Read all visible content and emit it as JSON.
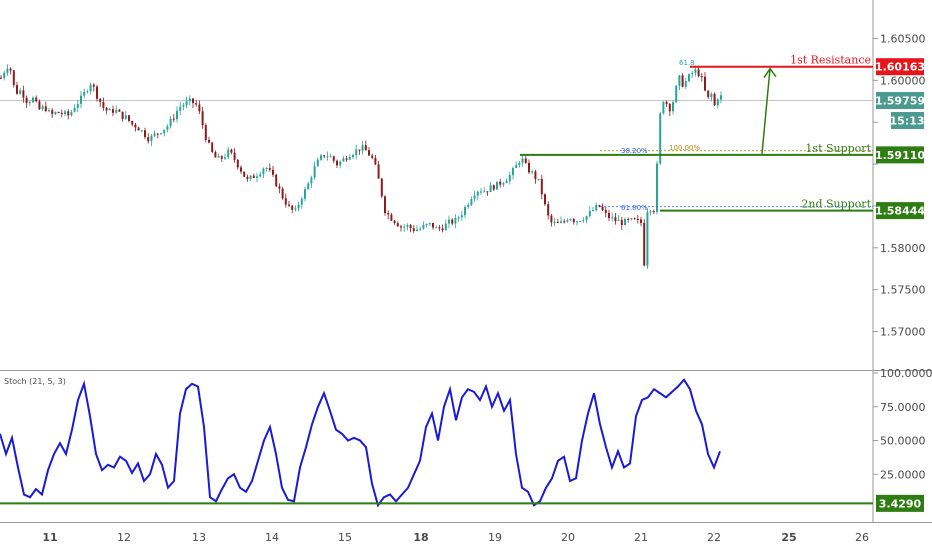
{
  "chart_data": [
    {
      "type": "candlestick",
      "title": "",
      "price_axis": {
        "ylim": [
          1.566,
          1.609
        ],
        "ticks": [
          1.57,
          1.575,
          1.58,
          1.585,
          1.59,
          1.595,
          1.6,
          1.605
        ],
        "tick_labels": [
          "1.57000",
          "1.57500",
          "1.58000",
          "",
          "",
          "",
          "1.60000",
          "1.60500"
        ]
      },
      "x_axis": {
        "labels": [
          "11",
          "12",
          "13",
          "14",
          "15",
          "18",
          "19",
          "20",
          "21",
          "22",
          "25",
          "26"
        ],
        "bold": [
          "11",
          "18",
          "25"
        ]
      },
      "current_price": "1.59759",
      "countdown": "15:13",
      "levels": [
        {
          "name": "1st Resistance",
          "value": 1.60163,
          "label": "1.60163",
          "color": "#e8141b"
        },
        {
          "name": "1st Support",
          "value": 1.5911,
          "label": "1.59110",
          "color": "#2e7d12"
        },
        {
          "name": "2nd Support",
          "value": 1.58444,
          "label": "1.58444",
          "color": "#2e7d12"
        }
      ],
      "fib_labels": [
        {
          "text": "61.8",
          "color": "#26a69a"
        },
        {
          "text": "38.20%",
          "color": "#2962ff"
        },
        {
          "text": "100.00%",
          "color": "#b8860b"
        },
        {
          "text": "61.80%",
          "color": "#2962ff"
        }
      ],
      "colors": {
        "up": "#26a69a",
        "down": "#8e1a1a",
        "arrow": "#2e7d12",
        "stoch": "#1a1ad6"
      },
      "path_points": [
        [
          0,
          1.6003
        ],
        [
          6,
          1.6018
        ],
        [
          10,
          1.6012
        ],
        [
          14,
          1.5985
        ],
        [
          20,
          1.5988
        ],
        [
          26,
          1.5975
        ],
        [
          32,
          1.5978
        ],
        [
          38,
          1.5965
        ],
        [
          44,
          1.5968
        ],
        [
          50,
          1.5958
        ],
        [
          56,
          1.5962
        ],
        [
          62,
          1.596
        ],
        [
          68,
          1.5958
        ],
        [
          74,
          1.597
        ],
        [
          80,
          1.5978
        ],
        [
          86,
          1.599
        ],
        [
          90,
          1.5998
        ],
        [
          96,
          1.5982
        ],
        [
          102,
          1.5968
        ],
        [
          108,
          1.5962
        ],
        [
          114,
          1.5965
        ],
        [
          120,
          1.5958
        ],
        [
          126,
          1.5955
        ],
        [
          130,
          1.5948
        ],
        [
          136,
          1.5945
        ],
        [
          142,
          1.5938
        ],
        [
          148,
          1.593
        ],
        [
          154,
          1.5935
        ],
        [
          160,
          1.594
        ],
        [
          166,
          1.5945
        ],
        [
          172,
          1.5955
        ],
        [
          178,
          1.5968
        ],
        [
          184,
          1.5972
        ],
        [
          190,
          1.5975
        ],
        [
          196,
          1.597
        ],
        [
          200,
          1.5955
        ],
        [
          204,
          1.5935
        ],
        [
          210,
          1.5915
        ],
        [
          216,
          1.5905
        ],
        [
          222,
          1.5908
        ],
        [
          228,
          1.5915
        ],
        [
          234,
          1.5905
        ],
        [
          240,
          1.5893
        ],
        [
          246,
          1.588
        ],
        [
          252,
          1.5885
        ],
        [
          258,
          1.589
        ],
        [
          264,
          1.5898
        ],
        [
          270,
          1.5888
        ],
        [
          276,
          1.5875
        ],
        [
          282,
          1.586
        ],
        [
          288,
          1.5848
        ],
        [
          294,
          1.5842
        ],
        [
          300,
          1.586
        ],
        [
          306,
          1.5872
        ],
        [
          312,
          1.5892
        ],
        [
          318,
          1.5905
        ],
        [
          324,
          1.5912
        ],
        [
          330,
          1.5908
        ],
        [
          336,
          1.59
        ],
        [
          342,
          1.5905
        ],
        [
          348,
          1.5912
        ],
        [
          354,
          1.5915
        ],
        [
          360,
          1.592
        ],
        [
          366,
          1.5915
        ],
        [
          372,
          1.5905
        ],
        [
          376,
          1.589
        ],
        [
          380,
          1.5868
        ],
        [
          384,
          1.5845
        ],
        [
          388,
          1.5838
        ],
        [
          394,
          1.5832
        ],
        [
          400,
          1.5825
        ],
        [
          406,
          1.5826
        ],
        [
          412,
          1.5822
        ],
        [
          418,
          1.5822
        ],
        [
          424,
          1.5826
        ],
        [
          430,
          1.5828
        ],
        [
          436,
          1.5822
        ],
        [
          442,
          1.5825
        ],
        [
          448,
          1.583
        ],
        [
          454,
          1.5832
        ],
        [
          460,
          1.584
        ],
        [
          466,
          1.5852
        ],
        [
          472,
          1.5865
        ],
        [
          478,
          1.587
        ],
        [
          484,
          1.5868
        ],
        [
          490,
          1.5872
        ],
        [
          496,
          1.5875
        ],
        [
          502,
          1.588
        ],
        [
          508,
          1.5885
        ],
        [
          514,
          1.5895
        ],
        [
          520,
          1.5908
        ],
        [
          526,
          1.5895
        ],
        [
          532,
          1.5888
        ],
        [
          538,
          1.5878
        ],
        [
          542,
          1.586
        ],
        [
          546,
          1.584
        ],
        [
          550,
          1.583
        ],
        [
          556,
          1.5828
        ],
        [
          562,
          1.583
        ],
        [
          568,
          1.5838
        ],
        [
          574,
          1.5832
        ],
        [
          580,
          1.5835
        ],
        [
          586,
          1.5838
        ],
        [
          592,
          1.5845
        ],
        [
          598,
          1.585
        ],
        [
          604,
          1.584
        ],
        [
          610,
          1.5835
        ],
        [
          616,
          1.5832
        ],
        [
          622,
          1.583
        ],
        [
          628,
          1.5832
        ],
        [
          634,
          1.5832
        ],
        [
          640,
          1.583
        ],
        [
          644,
          1.577
        ],
        [
          646,
          1.5845
        ],
        [
          650,
          1.5848
        ],
        [
          654,
          1.5845
        ],
        [
          658,
          1.595
        ],
        [
          662,
          1.5978
        ],
        [
          666,
          1.5972
        ],
        [
          670,
          1.5965
        ],
        [
          674,
          1.5985
        ],
        [
          678,
          1.6003
        ],
        [
          682,
          1.5995
        ],
        [
          686,
          1.6
        ],
        [
          690,
          1.6008
        ],
        [
          696,
          1.6012
        ],
        [
          702,
          1.5998
        ],
        [
          706,
          1.5975
        ],
        [
          710,
          1.5985
        ],
        [
          714,
          1.5968
        ],
        [
          718,
          1.5985
        ],
        [
          722,
          1.5976
        ]
      ],
      "stochastic": {
        "title": "Stoch (21, 5, 3)",
        "ylim": [
          0,
          100
        ],
        "ticks": [
          25,
          50,
          75,
          100
        ],
        "tick_labels": [
          "25.0000",
          "50.0000",
          "75.0000",
          "100.0000"
        ],
        "level": 3.429,
        "level_label": "3.4290",
        "x": [
          0,
          6,
          12,
          18,
          24,
          30,
          36,
          42,
          48,
          54,
          60,
          66,
          72,
          78,
          84,
          90,
          96,
          102,
          108,
          114,
          120,
          126,
          132,
          138,
          144,
          150,
          156,
          162,
          168,
          174,
          180,
          186,
          192,
          198,
          204,
          210,
          216,
          222,
          228,
          234,
          240,
          246,
          252,
          258,
          264,
          270,
          276,
          282,
          288,
          294,
          300,
          306,
          312,
          318,
          324,
          330,
          336,
          342,
          348,
          354,
          360,
          366,
          372,
          378,
          384,
          390,
          396,
          402,
          408,
          414,
          420,
          426,
          432,
          438,
          444,
          450,
          456,
          462,
          468,
          474,
          480,
          486,
          492,
          498,
          504,
          510,
          516,
          522,
          528,
          534,
          540,
          546,
          552,
          558,
          564,
          570,
          576,
          582,
          588,
          594,
          600,
          606,
          612,
          618,
          624,
          630,
          636,
          642,
          648,
          654,
          660,
          666,
          672,
          678,
          684,
          690,
          696,
          702,
          708,
          714,
          720
        ],
        "y": [
          55,
          40,
          52,
          30,
          10,
          8,
          14,
          10,
          28,
          40,
          48,
          40,
          58,
          80,
          92,
          68,
          40,
          28,
          32,
          30,
          38,
          35,
          26,
          33,
          20,
          25,
          40,
          32,
          15,
          20,
          70,
          88,
          92,
          90,
          60,
          8,
          5,
          14,
          22,
          25,
          15,
          12,
          20,
          35,
          50,
          60,
          40,
          15,
          6,
          5,
          30,
          45,
          62,
          75,
          85,
          72,
          58,
          55,
          50,
          52,
          50,
          45,
          18,
          2,
          8,
          10,
          5,
          10,
          15,
          25,
          35,
          60,
          70,
          50,
          75,
          88,
          65,
          82,
          88,
          86,
          80,
          90,
          75,
          85,
          72,
          80,
          40,
          15,
          12,
          2,
          5,
          15,
          22,
          35,
          38,
          20,
          22,
          50,
          70,
          85,
          62,
          45,
          30,
          42,
          30,
          33,
          68,
          80,
          82,
          88,
          85,
          82,
          86,
          90,
          95,
          88,
          72,
          62,
          40,
          30,
          42
        ]
      }
    }
  ]
}
